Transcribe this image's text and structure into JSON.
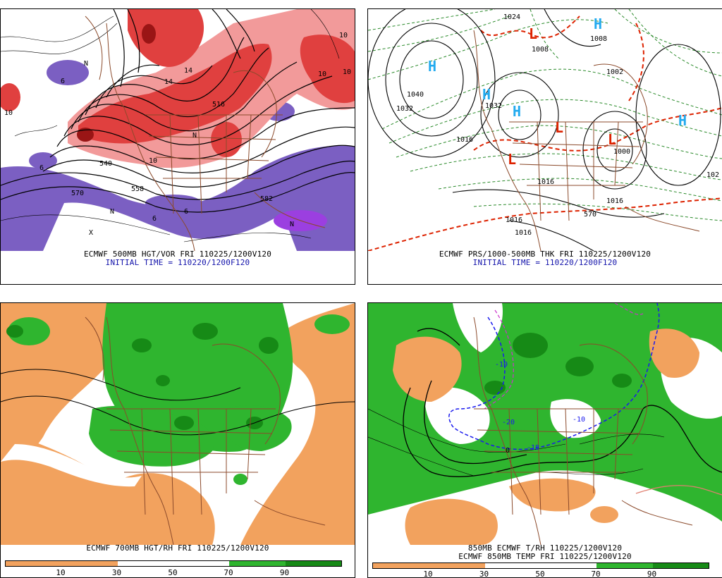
{
  "panels": {
    "tl": {
      "caption1": "ECMWF 500MB HGT/VOR FRI 110225/1200V120",
      "caption2": "INITIAL TIME = 110220/1200F120",
      "labels": [
        "570",
        "558",
        "516",
        "540",
        "582",
        "10",
        "10",
        "10",
        "6",
        "6",
        "14",
        "6",
        "6",
        "10",
        "N",
        "N",
        "N",
        "X",
        "N",
        "14",
        "10"
      ]
    },
    "tr": {
      "caption1": "ECMWF PRS/1000-500MB THK FRI 110225/1200V120",
      "caption2": "INITIAL TIME = 110220/1200F120",
      "highs": [
        "H",
        "H",
        "H",
        "H",
        "H"
      ],
      "lows": [
        "L",
        "L",
        "L",
        "L"
      ],
      "labels": [
        "1040",
        "1032",
        "1016",
        "1016",
        "1016",
        "1016",
        "1008",
        "1000",
        "1002",
        "1008",
        "1016",
        "1024",
        "1032",
        "570",
        "102"
      ]
    },
    "bl": {
      "caption1": "ECMWF 700MB HGT/RH FRI 110225/1200V120",
      "colorbar": [
        "10",
        "30",
        "50",
        "70",
        "90"
      ]
    },
    "br": {
      "caption1": "850MB ECMWF T/RH 110225/1200V120",
      "caption2": "ECMWF 850MB TEMP FRI 110225/1200V120",
      "labels": [
        "-10",
        "-20",
        "-18",
        "0",
        "-10"
      ],
      "colorbar": [
        "10",
        "30",
        "50",
        "70",
        "90"
      ]
    }
  },
  "colors": {
    "vort_red": "#e0403f",
    "vort_pink": "#f29a9a",
    "vort_purple": "#7b5fc2",
    "dry_orange": "#f2a25e",
    "moist_green": "#2fb52f",
    "dark_green": "#168a16",
    "state_brown": "#8b4a2b",
    "high_blue": "#22aaee",
    "low_red": "#dd2200"
  }
}
